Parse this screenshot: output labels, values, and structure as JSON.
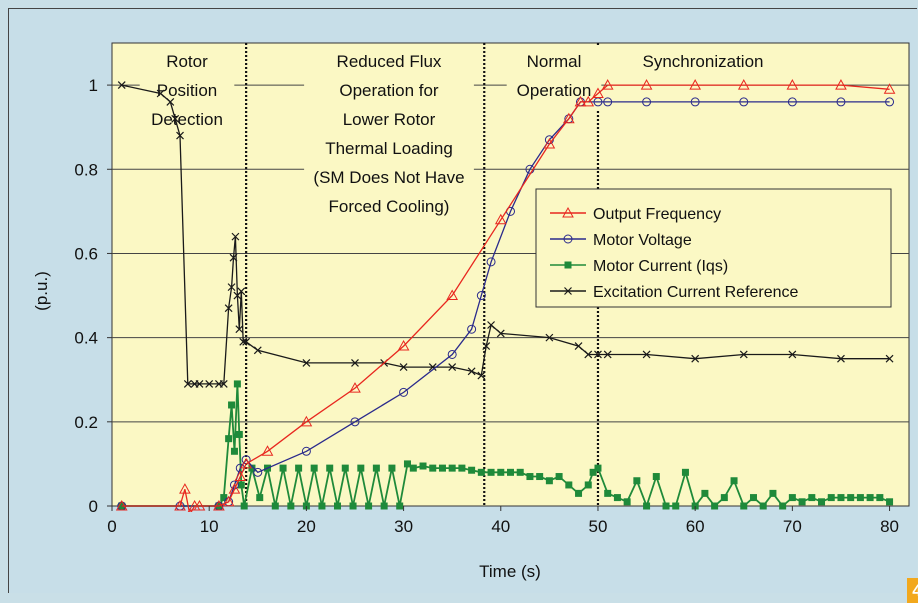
{
  "chart_data": {
    "type": "line",
    "title": "",
    "xlabel": "Time (s)",
    "ylabel": "(p.u.)",
    "xlim": [
      0,
      82
    ],
    "ylim": [
      0,
      1.1
    ],
    "xticks": [
      0,
      10,
      20,
      30,
      40,
      50,
      60,
      70,
      80
    ],
    "yticks": [
      0,
      0.2,
      0.4,
      0.6,
      0.8,
      1
    ],
    "ytick_labels": [
      "0",
      "0.2",
      "0.4",
      "0.6",
      "0.8",
      "1"
    ],
    "grid": "horizontal",
    "legend_placement": "right",
    "background": "#fbf8c4",
    "phase_boundaries": [
      13.8,
      38.3,
      50
    ],
    "regions": [
      {
        "lines": [
          "Rotor",
          "Position",
          "Detection"
        ]
      },
      {
        "lines": [
          "Reduced Flux",
          "Operation for",
          "Lower Rotor",
          "Thermal Loading",
          "(SM Does Not Have",
          "Forced Cooling)"
        ]
      },
      {
        "lines": [
          "Normal",
          "Operation"
        ]
      },
      {
        "lines": [
          "Synchronization"
        ]
      }
    ],
    "series": [
      {
        "name": "Output Frequency",
        "color": "#e8271f",
        "marker": "triangle",
        "x": [
          1,
          7,
          7.5,
          8,
          8.5,
          9,
          11,
          12,
          12.6,
          13.2,
          13.8,
          16,
          20,
          25,
          30,
          35,
          40,
          45,
          47,
          48.2,
          49,
          50,
          51,
          55,
          60,
          65,
          70,
          75,
          80
        ],
        "y": [
          0,
          0,
          0.04,
          -0.02,
          0,
          0,
          0,
          0.01,
          0.04,
          0.07,
          0.1,
          0.13,
          0.2,
          0.28,
          0.38,
          0.5,
          0.68,
          0.86,
          0.92,
          0.96,
          0.96,
          0.98,
          1,
          1,
          1,
          1,
          1,
          1,
          0.99
        ]
      },
      {
        "name": "Motor Voltage",
        "color": "#2a2a8c",
        "marker": "circle",
        "x": [
          1,
          7,
          11,
          12,
          12.6,
          13.2,
          13.8,
          15,
          20,
          25,
          30,
          35,
          37,
          38,
          39,
          41,
          43,
          45,
          47,
          48.2,
          50,
          51,
          55,
          60,
          65,
          70,
          75,
          80
        ],
        "y": [
          0,
          0,
          0,
          0.01,
          0.05,
          0.09,
          0.11,
          0.08,
          0.13,
          0.2,
          0.27,
          0.36,
          0.42,
          0.5,
          0.58,
          0.7,
          0.8,
          0.87,
          0.92,
          0.96,
          0.96,
          0.96,
          0.96,
          0.96,
          0.96,
          0.96,
          0.96,
          0.96
        ]
      },
      {
        "name": "Motor Current (Iqs)",
        "color": "#1f8a3a",
        "marker": "square",
        "x": [
          1,
          11,
          11.5,
          12,
          12.3,
          12.6,
          12.9,
          13.1,
          13.3,
          13.6,
          14.4,
          15.2,
          16,
          16.8,
          17.6,
          18.4,
          19.2,
          20,
          20.8,
          21.6,
          22.4,
          23.2,
          24,
          24.8,
          25.6,
          26.4,
          27.2,
          28,
          28.8,
          29.6,
          30.4,
          31,
          32,
          33,
          34,
          35,
          36,
          37,
          38,
          39,
          40,
          41,
          42,
          43,
          44,
          45,
          46,
          47,
          48,
          49,
          49.5,
          50,
          51,
          52,
          53,
          54,
          55,
          56,
          57,
          58,
          59,
          60,
          61,
          62,
          63,
          64,
          65,
          66,
          67,
          68,
          69,
          70,
          71,
          72,
          73,
          74,
          75,
          76,
          77,
          78,
          79,
          80
        ],
        "y": [
          0,
          0,
          0.02,
          0.16,
          0.24,
          0.13,
          0.29,
          0.17,
          0.05,
          0,
          0.09,
          0.02,
          0.09,
          0,
          0.09,
          0,
          0.09,
          0,
          0.09,
          0,
          0.09,
          0,
          0.09,
          0,
          0.09,
          0,
          0.09,
          0,
          0.09,
          0,
          0.1,
          0.09,
          0.095,
          0.09,
          0.09,
          0.09,
          0.09,
          0.085,
          0.08,
          0.08,
          0.08,
          0.08,
          0.08,
          0.07,
          0.07,
          0.06,
          0.07,
          0.05,
          0.03,
          0.05,
          0.08,
          0.09,
          0.03,
          0.02,
          0.01,
          0.06,
          0,
          0.07,
          0,
          0,
          0.08,
          0,
          0.03,
          0,
          0.02,
          0.06,
          0,
          0.02,
          0,
          0.03,
          0,
          0.02,
          0.01,
          0.02,
          0.01,
          0.02,
          0.02,
          0.02,
          0.02,
          0.02,
          0.02,
          0.01
        ]
      },
      {
        "name": "Excitation Current Reference",
        "color": "#1a1a1a",
        "marker": "x",
        "x": [
          1,
          5,
          6,
          6.5,
          7,
          7.8,
          8.5,
          9,
          10,
          11,
          11.5,
          12,
          12.3,
          12.5,
          12.7,
          12.9,
          13.1,
          13.3,
          13.5,
          13.8,
          15,
          20,
          25,
          28,
          30,
          33,
          35,
          37,
          38,
          38.5,
          39,
          40,
          45,
          48,
          49,
          50,
          51,
          55,
          60,
          65,
          70,
          75,
          80
        ],
        "y": [
          1,
          0.98,
          0.96,
          0.92,
          0.88,
          0.29,
          0.29,
          0.29,
          0.29,
          0.29,
          0.29,
          0.47,
          0.52,
          0.59,
          0.64,
          0.5,
          0.42,
          0.51,
          0.39,
          0.39,
          0.37,
          0.34,
          0.34,
          0.34,
          0.33,
          0.33,
          0.33,
          0.32,
          0.31,
          0.38,
          0.43,
          0.41,
          0.4,
          0.38,
          0.36,
          0.36,
          0.36,
          0.36,
          0.35,
          0.36,
          0.36,
          0.35,
          0.35
        ]
      }
    ]
  }
}
